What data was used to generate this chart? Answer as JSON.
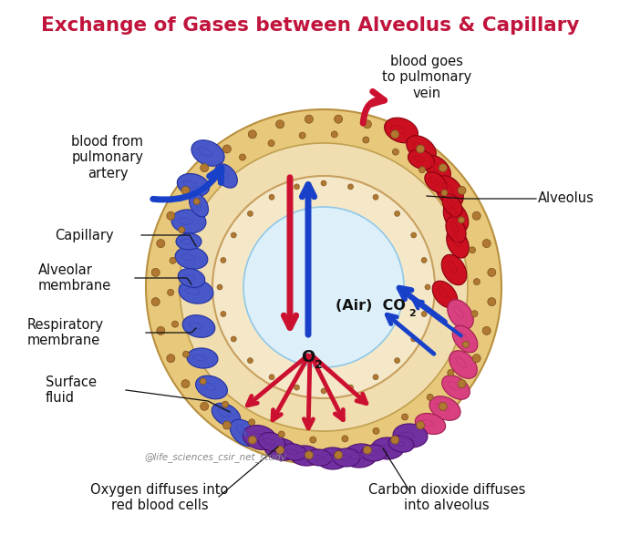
{
  "title": "Exchange of Gases between Alveolus & Capillary",
  "title_color": "#c0143c",
  "title_fontsize": 15.5,
  "bg_color": "#ffffff",
  "labels": {
    "blood_from": "blood from\npulmonary\nartery",
    "blood_goes": "blood goes\nto pulmonary\nvein",
    "alveolus": "Alveolus",
    "capillary": "Capillary",
    "alveolar_membrane": "Alveolar\nmembrane",
    "respiratory_membrane": "Respiratory\nmembrane",
    "surface_fluid": "Surface\nfluid",
    "o2": "O",
    "o2_sub": "2",
    "air_co2": "(Air)  CO",
    "co2_sub": "2",
    "oxygen_diffuses": "Oxygen diffuses into\nred blood cells",
    "carbon_diffuses": "Carbon dioxide diffuses\ninto alveolus",
    "watermark": "@life_sciences_csir_net_study"
  },
  "colors": {
    "outer_ring_fill": "#e8c87a",
    "outer_ring_edge": "#b89040",
    "membrane_fill": "#f0ddb0",
    "membrane_edge": "#c0a050",
    "alv_wall_fill": "#f5e8c8",
    "alv_wall_edge": "#c8a060",
    "alveolus_inner": "#ddf0fa",
    "alv_inner_edge": "#90c8e8",
    "blue_cell": "#4858c8",
    "blue_cell_ec": "#2030a0",
    "purple_cell": "#7030a0",
    "purple_cell_ec": "#501070",
    "red_cell": "#cc1020",
    "red_cell_ec": "#880010",
    "pink_cell": "#d84080",
    "pink_cell_ec": "#a02050",
    "dot_color": "#7a5020",
    "dot_fill": "#b07830",
    "arrow_red": "#cc1030",
    "arrow_blue": "#1840c8",
    "text_dark": "#111111",
    "line_color": "#111111",
    "watermark_color": "#888888"
  },
  "figsize": [
    6.8,
    5.87
  ],
  "dpi": 100
}
